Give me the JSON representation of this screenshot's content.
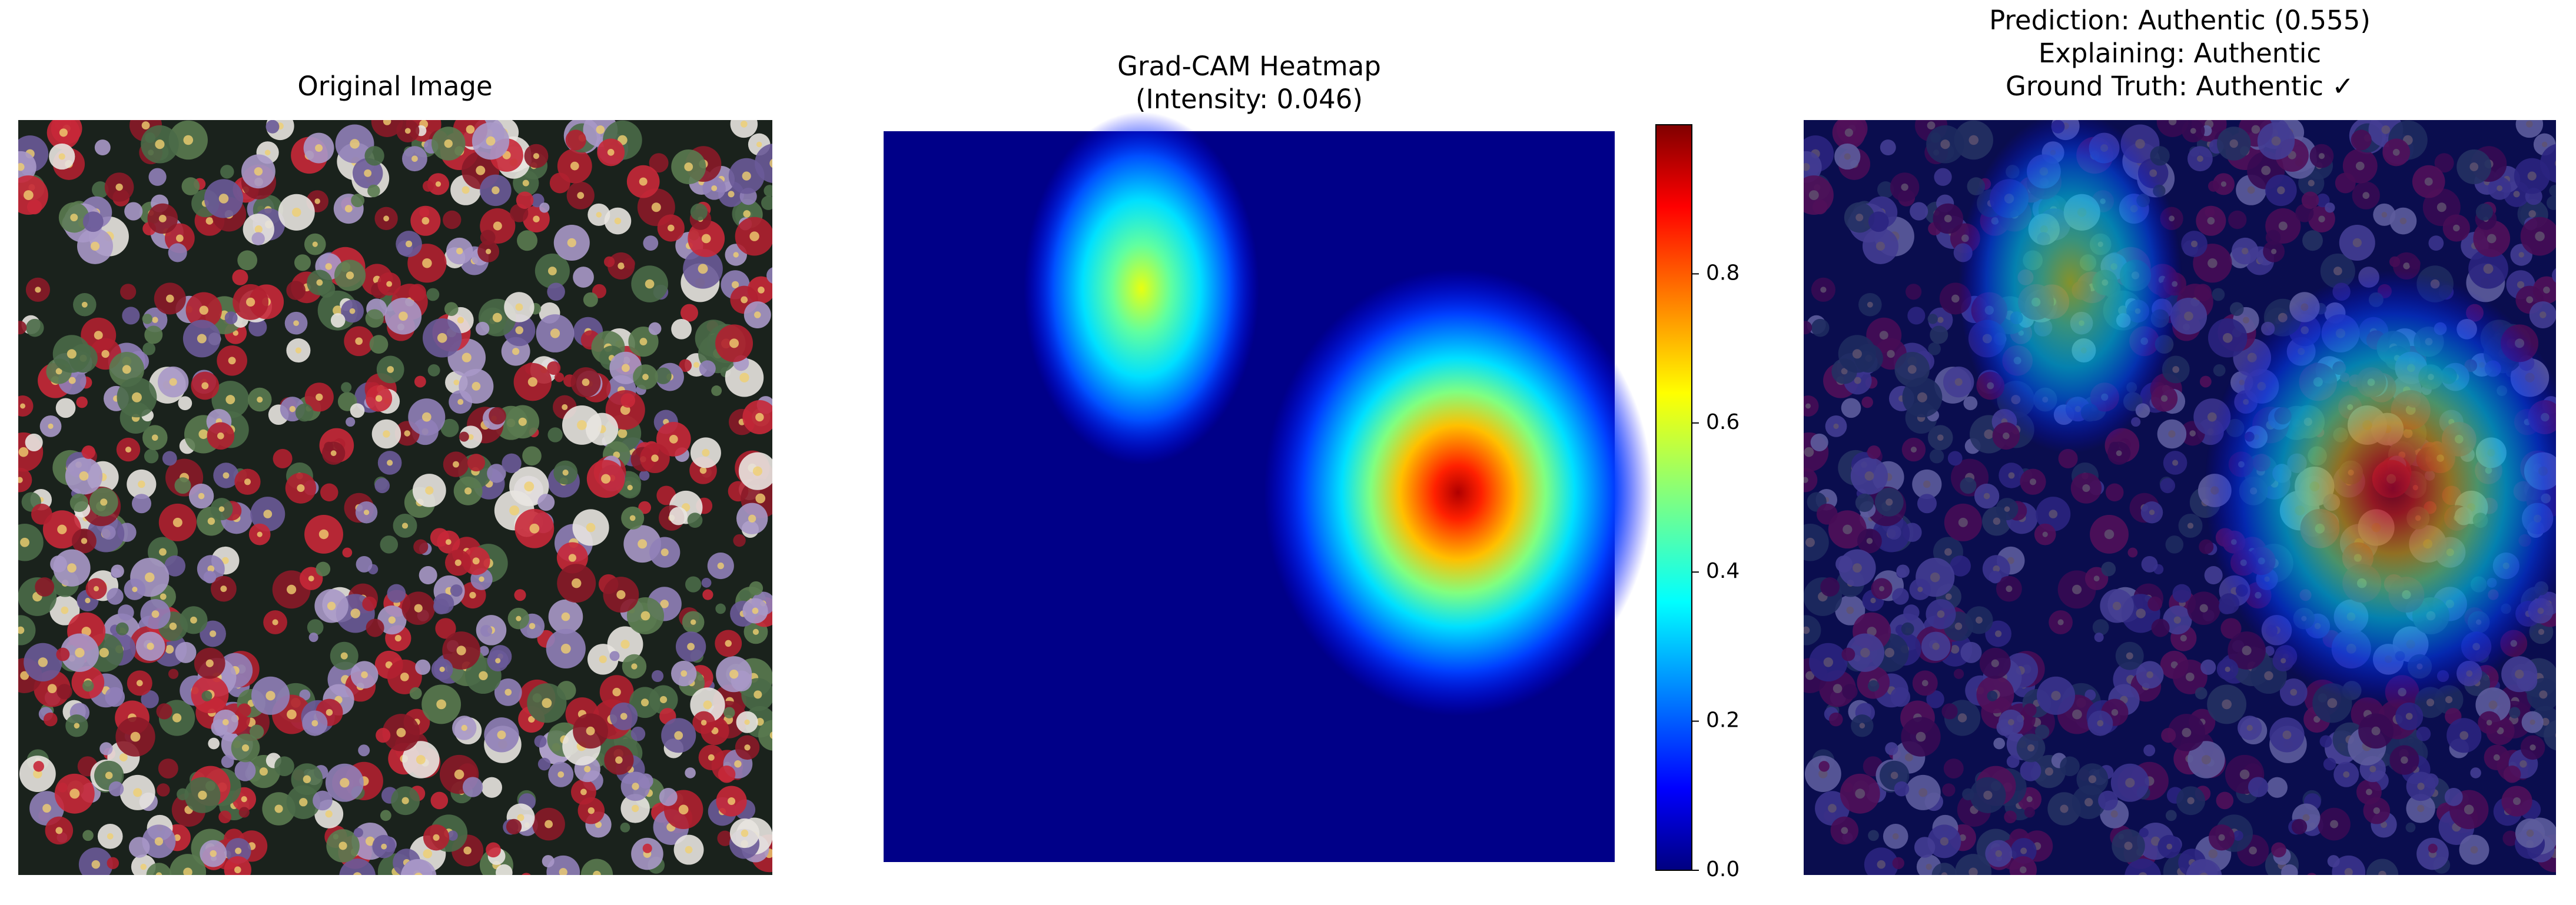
{
  "panels": [
    {
      "title": [
        "Original Image"
      ]
    },
    {
      "title": [
        "Grad-CAM Heatmap",
        "(Intensity: 0.046)"
      ]
    },
    {
      "title": [
        "Prediction: Authentic (0.555)",
        "Explaining: Authentic",
        "Ground Truth: Authentic ✓"
      ]
    }
  ],
  "colorbar": {
    "lim": [
      0,
      1
    ],
    "ticks": [
      {
        "value": 0,
        "label": "0.0"
      },
      0.2,
      0.4,
      0.6,
      0.8
    ]
  }
}
